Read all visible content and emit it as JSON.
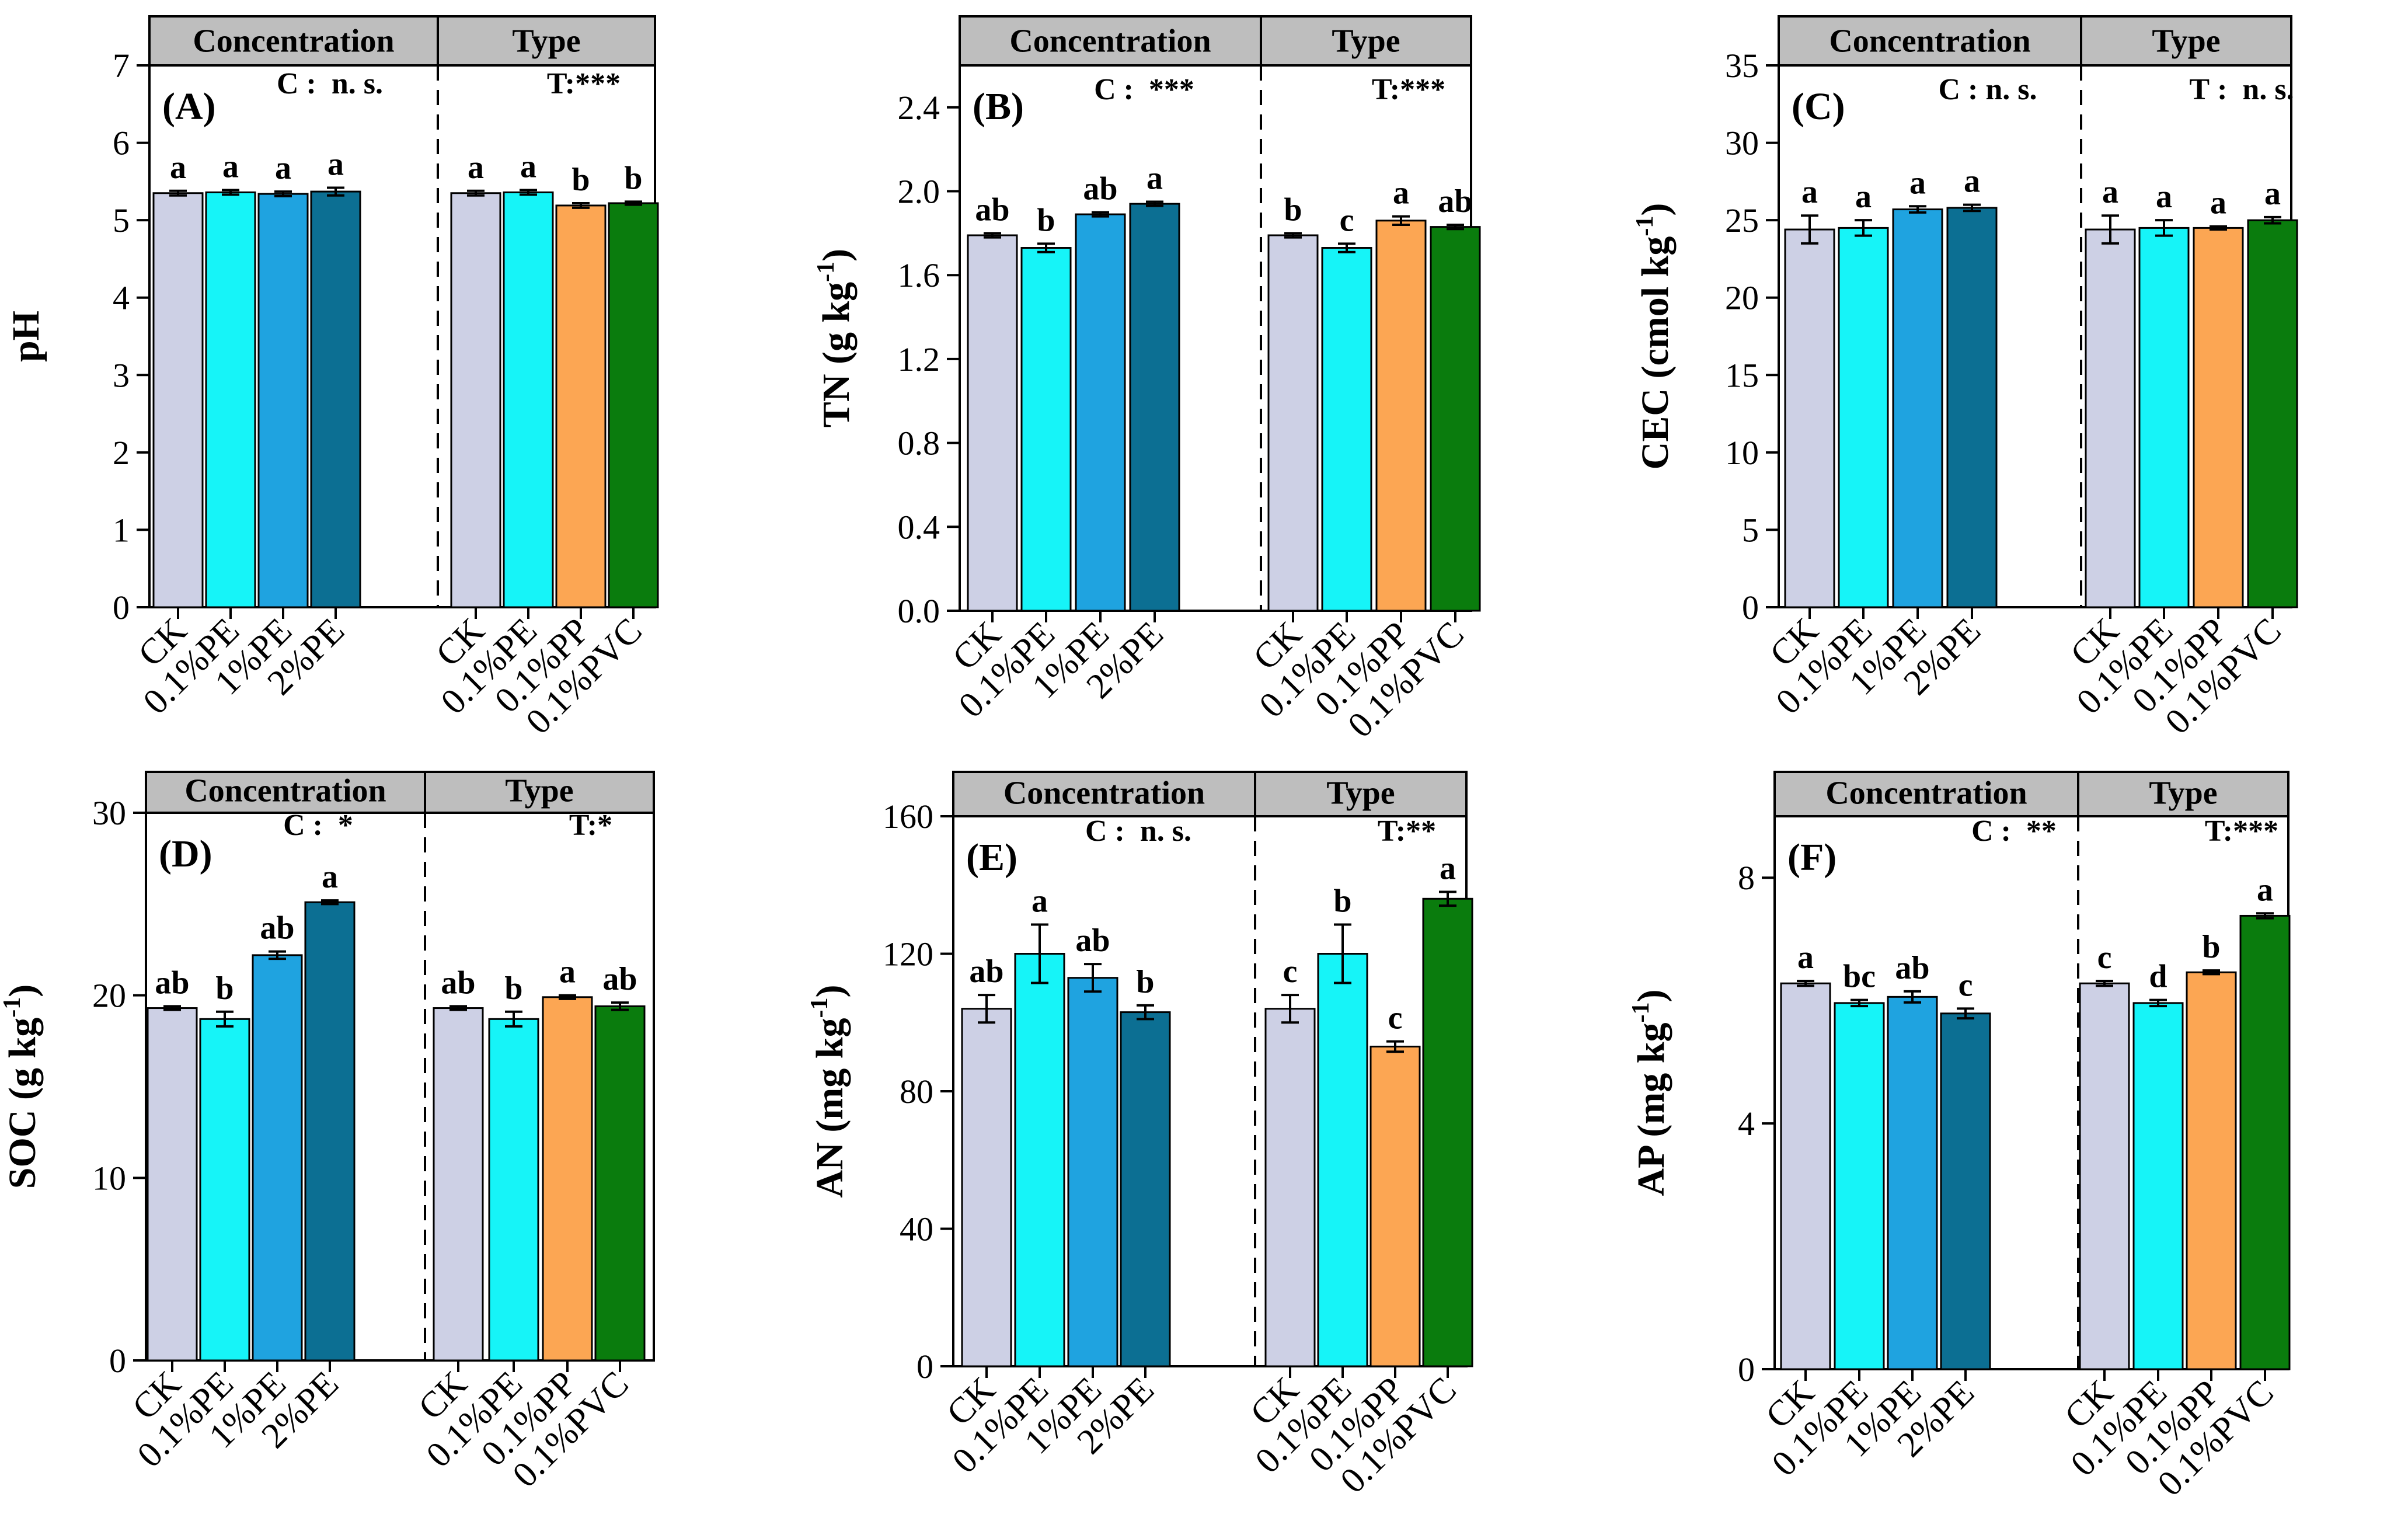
{
  "colors": {
    "CK": "#cdd0e5",
    "0.1%PE": "#16f4f8",
    "1%PE": "#1fa3e0",
    "2%PE": "#0c6f93",
    "0.1%PP": "#fca653",
    "0.1%PVC": "#0a7c0d",
    "header_bg": "#bebebe"
  },
  "chart_data": [
    {
      "type": "bar",
      "panel_label": "(A)",
      "ylabel": "pH",
      "ylabel_sup": "",
      "ylim": [
        0,
        7
      ],
      "yticks": [
        "0",
        "1",
        "2",
        "3",
        "4",
        "5",
        "6",
        "7"
      ],
      "header": {
        "left": "Concentration",
        "right": "Type"
      },
      "groups": [
        {
          "name": "Concentration",
          "significance": "C :  n. s.",
          "categories": [
            "CK",
            "0.1%PE",
            "1%PE",
            "2%PE"
          ],
          "values": [
            5.35,
            5.36,
            5.34,
            5.37
          ],
          "errors": [
            0.03,
            0.03,
            0.03,
            0.05
          ],
          "letters": [
            "a",
            "a",
            "a",
            "a"
          ]
        },
        {
          "name": "Type",
          "significance": "T:***",
          "categories": [
            "CK",
            "0.1%PE",
            "0.1%PP",
            "0.1%PVC"
          ],
          "values": [
            5.35,
            5.36,
            5.19,
            5.22
          ],
          "errors": [
            0.03,
            0.03,
            0.03,
            0.02
          ],
          "letters": [
            "a",
            "a",
            "b",
            "b"
          ]
        }
      ]
    },
    {
      "type": "bar",
      "panel_label": "(B)",
      "ylabel": "TN (g kg",
      "ylabel_sup": "-1",
      "ylim": [
        0,
        2.6
      ],
      "yticks": [
        "0.0",
        "0.4",
        "0.8",
        "1.2",
        "1.6",
        "2.0",
        "2.4"
      ],
      "header": {
        "left": "Concentration",
        "right": "Type"
      },
      "groups": [
        {
          "name": "Concentration",
          "significance": "C :  ***",
          "categories": [
            "CK",
            "0.1%PE",
            "1%PE",
            "2%PE"
          ],
          "values": [
            1.79,
            1.73,
            1.89,
            1.94
          ],
          "errors": [
            0.01,
            0.02,
            0.01,
            0.01
          ],
          "letters": [
            "ab",
            "b",
            "ab",
            "a"
          ]
        },
        {
          "name": "Type",
          "significance": "T:***",
          "categories": [
            "CK",
            "0.1%PE",
            "0.1%PP",
            "0.1%PVC"
          ],
          "values": [
            1.79,
            1.73,
            1.86,
            1.83
          ],
          "errors": [
            0.01,
            0.02,
            0.02,
            0.01
          ],
          "letters": [
            "b",
            "c",
            "a",
            "ab"
          ]
        }
      ]
    },
    {
      "type": "bar",
      "panel_label": "(C)",
      "ylabel": "CEC (cmol kg",
      "ylabel_sup": "-1",
      "ylim": [
        0,
        35
      ],
      "yticks": [
        "0",
        "5",
        "10",
        "15",
        "20",
        "25",
        "30",
        "35"
      ],
      "header": {
        "left": "Concentration",
        "right": "Type"
      },
      "groups": [
        {
          "name": "Concentration",
          "significance": "C : n. s.",
          "categories": [
            "CK",
            "0.1%PE",
            "1%PE",
            "2%PE"
          ],
          "values": [
            24.4,
            24.5,
            25.7,
            25.8
          ],
          "errors": [
            0.9,
            0.5,
            0.2,
            0.2
          ],
          "letters": [
            "a",
            "a",
            "a",
            "a"
          ]
        },
        {
          "name": "Type",
          "significance": "T :  n. s.",
          "categories": [
            "CK",
            "0.1%PE",
            "0.1%PP",
            "0.1%PVC"
          ],
          "values": [
            24.4,
            24.5,
            24.5,
            25.0
          ],
          "errors": [
            0.9,
            0.5,
            0.1,
            0.2
          ],
          "letters": [
            "a",
            "a",
            "a",
            "a"
          ]
        }
      ]
    },
    {
      "type": "bar",
      "panel_label": "(D)",
      "ylabel": "SOC (g kg",
      "ylabel_sup": "-1",
      "ylim": [
        0,
        30
      ],
      "yticks": [
        "0",
        "10",
        "20",
        "30"
      ],
      "header": {
        "left": "Concentration",
        "right": "Type"
      },
      "groups": [
        {
          "name": "Concentration",
          "significance": "C :  *",
          "categories": [
            "CK",
            "0.1%PE",
            "1%PE",
            "2%PE"
          ],
          "values": [
            19.3,
            18.7,
            22.2,
            25.1
          ],
          "errors": [
            0.1,
            0.4,
            0.2,
            0.1
          ],
          "letters": [
            "ab",
            "b",
            "ab",
            "a"
          ]
        },
        {
          "name": "Type",
          "significance": "T:*",
          "categories": [
            "CK",
            "0.1%PE",
            "0.1%PP",
            "0.1%PVC"
          ],
          "values": [
            19.3,
            18.7,
            19.9,
            19.4
          ],
          "errors": [
            0.1,
            0.4,
            0.1,
            0.2
          ],
          "letters": [
            "ab",
            "b",
            "a",
            "ab"
          ]
        }
      ]
    },
    {
      "type": "bar",
      "panel_label": "(E)",
      "ylabel": "AN (mg kg",
      "ylabel_sup": "-1",
      "ylim": [
        0,
        160
      ],
      "yticks": [
        "0",
        "40",
        "80",
        "120",
        "160"
      ],
      "header": {
        "left": "Concentration",
        "right": "Type"
      },
      "groups": [
        {
          "name": "Concentration",
          "significance": "C :  n. s.",
          "categories": [
            "CK",
            "0.1%PE",
            "1%PE",
            "2%PE"
          ],
          "values": [
            104,
            120,
            113,
            103
          ],
          "errors": [
            4,
            8.5,
            4,
            2
          ],
          "letters": [
            "ab",
            "a",
            "ab",
            "b"
          ]
        },
        {
          "name": "Type",
          "significance": "T:**",
          "categories": [
            "CK",
            "0.1%PE",
            "0.1%PP",
            "0.1%PVC"
          ],
          "values": [
            104,
            120,
            93,
            136
          ],
          "errors": [
            4,
            8.5,
            1.5,
            2
          ],
          "letters": [
            "c",
            "b",
            "c",
            "a"
          ]
        }
      ]
    },
    {
      "type": "bar",
      "panel_label": "(F)",
      "ylabel": "AP (mg kg",
      "ylabel_sup": "-1",
      "ylim": [
        0,
        9
      ],
      "yticks": [
        "0",
        "4",
        "8"
      ],
      "header": {
        "left": "Concentration",
        "right": "Type"
      },
      "groups": [
        {
          "name": "Concentration",
          "significance": "C :  **",
          "categories": [
            "CK",
            "0.1%PE",
            "1%PE",
            "2%PE"
          ],
          "values": [
            6.28,
            5.96,
            6.06,
            5.79
          ],
          "errors": [
            0.04,
            0.05,
            0.09,
            0.08
          ],
          "letters": [
            "a",
            "bc",
            "ab",
            "c"
          ]
        },
        {
          "name": "Type",
          "significance": "T:***",
          "categories": [
            "CK",
            "0.1%PE",
            "0.1%PP",
            "0.1%PVC"
          ],
          "values": [
            6.28,
            5.96,
            6.46,
            7.38
          ],
          "errors": [
            0.04,
            0.05,
            0.03,
            0.04
          ],
          "letters": [
            "c",
            "d",
            "b",
            "a"
          ]
        }
      ]
    }
  ]
}
